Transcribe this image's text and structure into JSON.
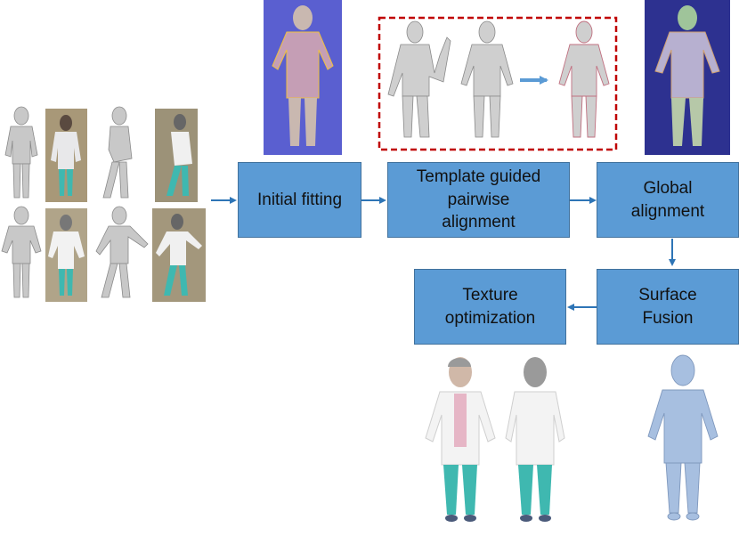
{
  "steps": {
    "initial_fitting": {
      "lines": [
        "Initial fitting"
      ]
    },
    "pairwise_alignment": {
      "lines": [
        "Template guided",
        "pairwise",
        "alignment"
      ]
    },
    "global_alignment": {
      "lines": [
        "Global",
        "alignment"
      ]
    },
    "surface_fusion": {
      "lines": [
        "Surface",
        "Fusion"
      ]
    },
    "texture_optimization": {
      "lines": [
        "Texture",
        "optimization"
      ]
    }
  },
  "colors": {
    "box_fill": "#5b9bd5",
    "box_border": "#41719c",
    "arrow": "#2e75b6",
    "highlight_dash": "#c00000",
    "scan_bg": "#5a5fd0",
    "mesh_gray": "#c8c8c8",
    "fused_blue": "#a7bfe0"
  },
  "icons": [
    "human-mesh-icon",
    "rgb-photo-icon",
    "arrow-icon",
    "dashed-highlight-frame"
  ]
}
